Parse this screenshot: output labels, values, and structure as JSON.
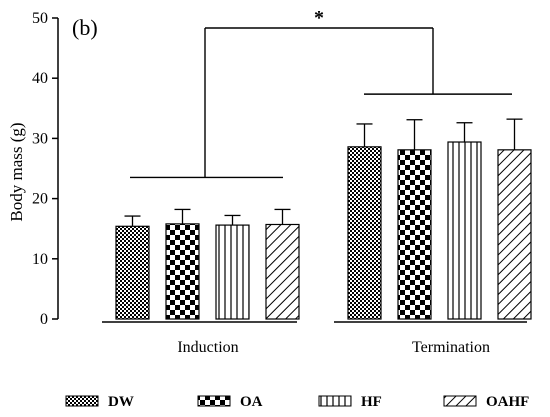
{
  "chart_data": {
    "type": "bar",
    "panel_label": "(b)",
    "ylabel": "Body mass (g)",
    "xlabel": "",
    "ylim": [
      0,
      50
    ],
    "yticks": [
      0,
      10,
      20,
      30,
      40,
      50
    ],
    "grid": false,
    "legend_position": "bottom",
    "groups": [
      "Induction",
      "Termination"
    ],
    "series": [
      {
        "name": "DW",
        "pattern": "crosshatch",
        "values": [
          15.4,
          28.6
        ],
        "error": [
          1.7,
          3.8
        ]
      },
      {
        "name": "OA",
        "pattern": "checker",
        "values": [
          15.8,
          28.1
        ],
        "error": [
          2.4,
          5.0
        ]
      },
      {
        "name": "HF",
        "pattern": "vertical-lines",
        "values": [
          15.6,
          29.4
        ],
        "error": [
          1.6,
          3.2
        ]
      },
      {
        "name": "OAHF",
        "pattern": "diagonal-lines",
        "values": [
          15.7,
          28.1
        ],
        "error": [
          2.5,
          5.1
        ]
      }
    ],
    "annotation": {
      "text": "*",
      "meaning": "significance between Induction and Termination"
    }
  }
}
